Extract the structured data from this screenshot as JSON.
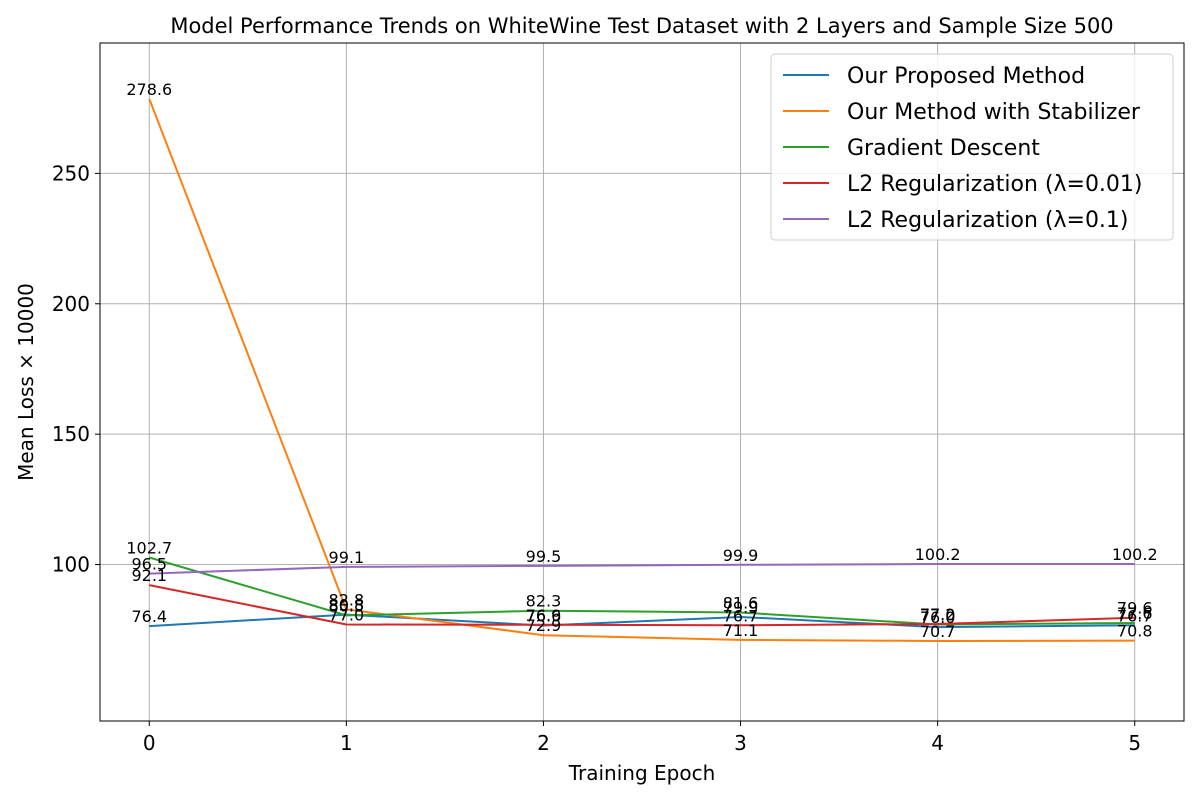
{
  "chart_data": {
    "type": "line",
    "title": "Model Performance Trends on WhiteWine Test Dataset with 2 Layers and Sample Size 500",
    "xlabel": "Training Epoch",
    "ylabel": "Mean Loss × 10000",
    "x": [
      0,
      1,
      2,
      3,
      4,
      5
    ],
    "xlim": [
      -0.25,
      5.25
    ],
    "ylim": [
      40,
      300
    ],
    "xticks": [
      "0",
      "1",
      "2",
      "3",
      "4",
      "5"
    ],
    "yticks": [
      "100",
      "150",
      "200",
      "250"
    ],
    "grid": true,
    "legend_position": "top-right",
    "series": [
      {
        "name": "Our Proposed Method",
        "color": "#1f77b4",
        "values": [
          76.4,
          80.8,
          76.6,
          79.9,
          76.0,
          76.7
        ],
        "labels": [
          "76.4",
          "80.8",
          "76.6",
          "79.9",
          "76.0",
          "76.7"
        ]
      },
      {
        "name": "Our Method with Stabilizer",
        "color": "#ff7f0e",
        "values": [
          278.6,
          82.8,
          72.9,
          71.1,
          70.7,
          70.8
        ],
        "labels": [
          "278.6",
          "82.8",
          "72.9",
          "71.1",
          "70.7",
          "70.8"
        ]
      },
      {
        "name": "Gradient Descent",
        "color": "#2ca02c",
        "values": [
          102.7,
          80.5,
          82.3,
          81.6,
          77.0,
          77.6
        ],
        "labels": [
          "102.7",
          "80.5",
          "82.3",
          "81.6",
          "77.0",
          "77.6"
        ]
      },
      {
        "name": "L2 Regularization (λ=0.01)",
        "color": "#d62728",
        "values": [
          92.1,
          77.0,
          76.9,
          76.7,
          77.2,
          79.6
        ],
        "labels": [
          "92.1",
          "77.0",
          "76.9",
          "76.7",
          "77.2",
          "79.6"
        ]
      },
      {
        "name": "L2 Regularization (λ=0.1)",
        "color": "#9467bd",
        "values": [
          96.5,
          99.1,
          99.5,
          99.9,
          100.2,
          100.2
        ],
        "labels": [
          "96.5",
          "99.1",
          "99.5",
          "99.9",
          "100.2",
          "100.2"
        ]
      }
    ]
  }
}
